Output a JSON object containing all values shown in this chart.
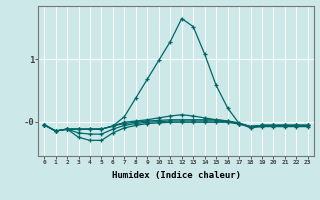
{
  "title": "",
  "xlabel": "Humidex (Indice chaleur)",
  "ylabel": "",
  "background_color": "#cce8e8",
  "line_color": "#006666",
  "grid_color": "#ffffff",
  "yticks": [
    0.0,
    1.0
  ],
  "ytick_labels": [
    "-0",
    "1"
  ],
  "xlim": [
    -0.5,
    23.5
  ],
  "ylim": [
    -0.55,
    1.85
  ],
  "line1_x": [
    0,
    1,
    2,
    3,
    4,
    5,
    6,
    7,
    8,
    9,
    10,
    11,
    12,
    13,
    14,
    15,
    16,
    17,
    18,
    19,
    20,
    21,
    22,
    23
  ],
  "line1_y": [
    -0.05,
    -0.15,
    -0.12,
    -0.12,
    -0.12,
    -0.12,
    -0.07,
    0.08,
    0.38,
    0.68,
    0.98,
    1.28,
    1.65,
    1.52,
    1.08,
    0.58,
    0.22,
    -0.03,
    -0.1,
    -0.08,
    -0.08,
    -0.08,
    -0.08,
    -0.08
  ],
  "line2_x": [
    0,
    1,
    2,
    3,
    4,
    5,
    6,
    7,
    8,
    9,
    10,
    11,
    12,
    13,
    14,
    15,
    16,
    17,
    18,
    19,
    20,
    21,
    22,
    23
  ],
  "line2_y": [
    -0.05,
    -0.15,
    -0.12,
    -0.25,
    -0.3,
    -0.3,
    -0.18,
    -0.1,
    -0.06,
    -0.03,
    -0.02,
    -0.01,
    -0.01,
    -0.01,
    -0.01,
    -0.01,
    -0.01,
    -0.04,
    -0.08,
    -0.06,
    -0.06,
    -0.06,
    -0.06,
    -0.06
  ],
  "line3_x": [
    0,
    1,
    2,
    3,
    4,
    5,
    6,
    7,
    8,
    9,
    10,
    11,
    12,
    13,
    14,
    15,
    16,
    17,
    18,
    19,
    20,
    21,
    22,
    23
  ],
  "line3_y": [
    -0.05,
    -0.15,
    -0.12,
    -0.18,
    -0.2,
    -0.2,
    -0.12,
    -0.06,
    -0.03,
    -0.01,
    0.0,
    0.01,
    0.01,
    0.01,
    0.01,
    0.01,
    0.0,
    -0.03,
    -0.08,
    -0.06,
    -0.06,
    -0.06,
    -0.06,
    -0.06
  ],
  "line4_x": [
    0,
    1,
    2,
    3,
    4,
    5,
    6,
    7,
    8,
    9,
    10,
    11,
    12,
    13,
    14,
    15,
    16,
    17,
    18,
    19,
    20,
    21,
    22,
    23
  ],
  "line4_y": [
    -0.05,
    -0.15,
    -0.12,
    -0.12,
    -0.12,
    -0.12,
    -0.07,
    -0.03,
    -0.01,
    0.01,
    0.02,
    0.03,
    0.03,
    0.03,
    0.03,
    0.03,
    0.01,
    -0.02,
    -0.08,
    -0.06,
    -0.06,
    -0.06,
    -0.06,
    -0.06
  ],
  "line5_x": [
    0,
    1,
    2,
    3,
    4,
    5,
    6,
    7,
    8,
    9,
    10,
    11,
    12,
    13,
    14,
    15,
    16,
    17,
    18,
    19,
    20,
    21,
    22,
    23
  ],
  "line5_y": [
    -0.05,
    -0.15,
    -0.12,
    -0.12,
    -0.12,
    -0.12,
    -0.07,
    -0.01,
    0.01,
    0.03,
    0.06,
    0.09,
    0.11,
    0.09,
    0.06,
    0.03,
    0.01,
    -0.03,
    -0.08,
    -0.06,
    -0.06,
    -0.06,
    -0.06,
    -0.06
  ]
}
